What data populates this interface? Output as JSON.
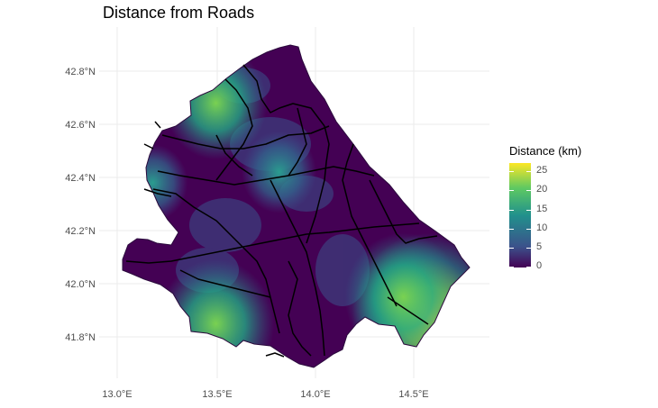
{
  "title": "Distance from Roads",
  "axes": {
    "x_ticks": [
      "13.0°E",
      "13.5°E",
      "14.0°E",
      "14.5°E"
    ],
    "y_ticks": [
      "42.8°N",
      "42.6°N",
      "42.4°N",
      "42.2°N",
      "42.0°N",
      "41.8°N"
    ]
  },
  "legend": {
    "title": "Distance (km)",
    "ticks": [
      "25",
      "20",
      "15",
      "10",
      "5",
      "0"
    ]
  },
  "colors": {
    "low": "#440154",
    "mid": "#21918c",
    "high": "#fde725",
    "roads": "#000000",
    "grid": "#ebebeb"
  },
  "hotspots": [
    {
      "lon": 14.57,
      "lat": 41.88,
      "distance_km": 25
    },
    {
      "lon": 14.45,
      "lat": 41.95,
      "distance_km": 18
    },
    {
      "lon": 13.5,
      "lat": 41.85,
      "distance_km": 18
    },
    {
      "lon": 13.5,
      "lat": 42.68,
      "distance_km": 15
    },
    {
      "lon": 13.82,
      "lat": 42.42,
      "distance_km": 9
    },
    {
      "lon": 13.18,
      "lat": 42.38,
      "distance_km": 8
    }
  ]
}
